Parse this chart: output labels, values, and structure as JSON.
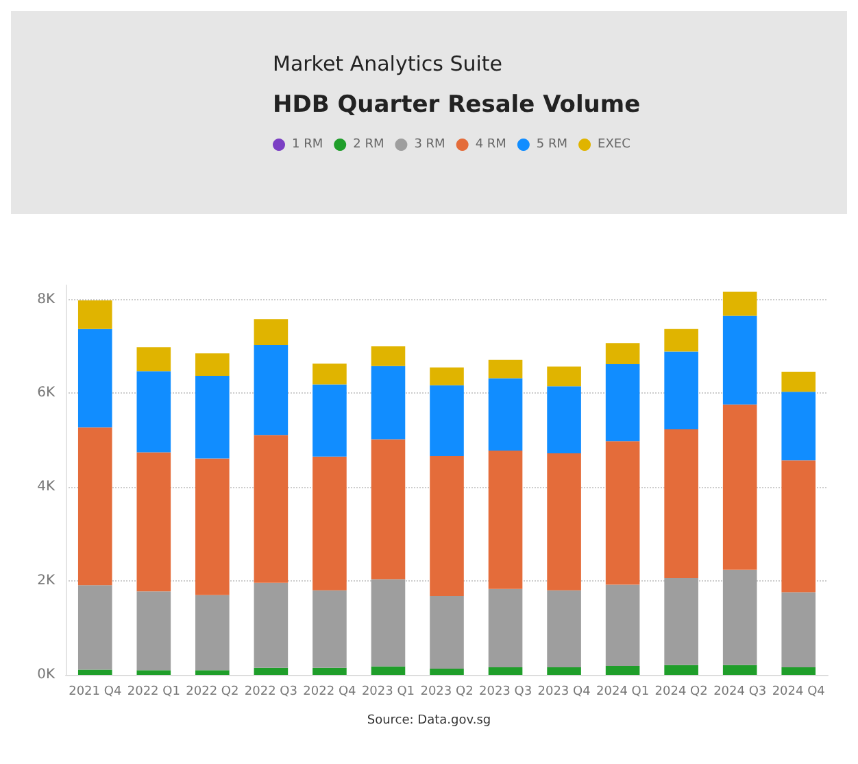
{
  "chart_data": {
    "type": "bar",
    "stacked": true,
    "subtitle": "Market Analytics Suite",
    "title": "HDB Quarter Resale Volume",
    "categories": [
      "2021 Q4",
      "2022 Q1",
      "2022 Q2",
      "2022 Q3",
      "2022 Q4",
      "2023 Q1",
      "2023 Q2",
      "2023 Q3",
      "2023 Q4",
      "2024 Q1",
      "2024 Q2",
      "2024 Q3",
      "2024 Q4"
    ],
    "series": [
      {
        "name": "1 RM",
        "color": "#7b3fc4",
        "values": [
          0,
          0,
          0,
          0,
          0,
          0,
          0,
          0,
          0,
          0,
          0,
          0,
          0
        ]
      },
      {
        "name": "2 RM",
        "color": "#1f9e2a",
        "values": [
          110,
          100,
          100,
          150,
          150,
          180,
          130,
          160,
          160,
          190,
          210,
          210,
          160
        ]
      },
      {
        "name": "3 RM",
        "color": "#9e9e9e",
        "values": [
          1800,
          1680,
          1600,
          1810,
          1650,
          1860,
          1550,
          1670,
          1640,
          1730,
          1850,
          2030,
          1600
        ]
      },
      {
        "name": "4 RM",
        "color": "#e46c3a",
        "values": [
          3360,
          2960,
          2910,
          3150,
          2850,
          2980,
          2980,
          2950,
          2920,
          3060,
          3170,
          3520,
          2810
        ]
      },
      {
        "name": "5 RM",
        "color": "#118dff",
        "values": [
          2100,
          1730,
          1760,
          1920,
          1540,
          1560,
          1510,
          1540,
          1430,
          1640,
          1660,
          1890,
          1460
        ]
      },
      {
        "name": "EXEC",
        "color": "#e0b400",
        "values": [
          610,
          510,
          480,
          550,
          440,
          420,
          380,
          390,
          420,
          450,
          480,
          510,
          430
        ]
      }
    ],
    "ylim": [
      0,
      8300
    ],
    "yticks": [
      {
        "value": 0,
        "label": "0K"
      },
      {
        "value": 2000,
        "label": "2K"
      },
      {
        "value": 4000,
        "label": "4K"
      },
      {
        "value": 6000,
        "label": "6K"
      },
      {
        "value": 8000,
        "label": "8K"
      }
    ],
    "grid": "y",
    "legend": "top",
    "annotations": [
      "Source: Data.gov.sg"
    ]
  }
}
